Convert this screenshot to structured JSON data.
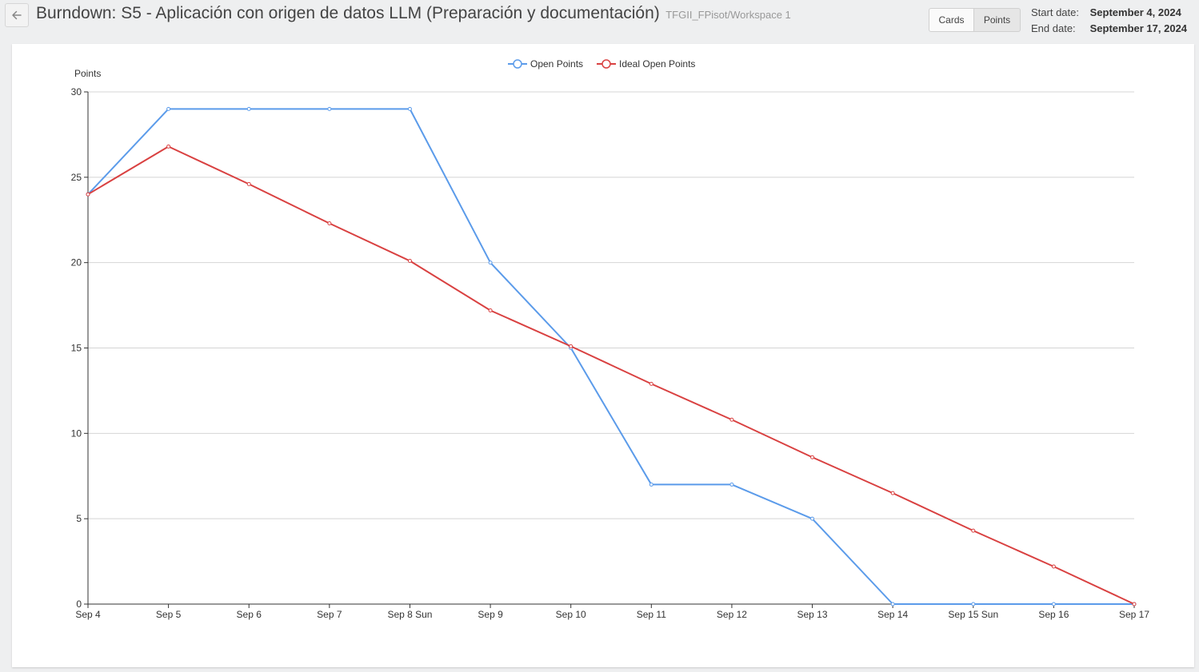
{
  "header": {
    "title": "Burndown: S5 - Aplicación con origen de datos LLM (Preparación y documentación)",
    "subtitle": "TFGII_FPisot/Workspace 1",
    "back_icon": "arrow-left-icon",
    "toggle": {
      "cards_label": "Cards",
      "points_label": "Points",
      "selected": "Points"
    },
    "start_label": "Start date:",
    "start_value": "September 4, 2024",
    "end_label": "End date:",
    "end_value": "September 17, 2024"
  },
  "chart_data": {
    "type": "line",
    "ylabel": "Points",
    "ylim": [
      0,
      30
    ],
    "yticks": [
      0,
      5,
      10,
      15,
      20,
      25,
      30
    ],
    "grid": true,
    "legend_position": "top-center",
    "categories": [
      "Sep 4",
      "Sep 5",
      "Sep 6",
      "Sep 7",
      "Sep 8 Sun",
      "Sep 9",
      "Sep 10",
      "Sep 11",
      "Sep 12",
      "Sep 13",
      "Sep 14",
      "Sep 15 Sun",
      "Sep 16",
      "Sep 17"
    ],
    "series": [
      {
        "name": "Open Points",
        "color": "#5b9bea",
        "values": [
          24,
          29,
          29,
          29,
          29,
          20,
          15,
          7,
          7,
          5,
          0,
          0,
          0,
          0
        ]
      },
      {
        "name": "Ideal Open Points",
        "color": "#d94141",
        "values": [
          24,
          26.8,
          24.6,
          22.3,
          20.1,
          17.2,
          15.1,
          12.9,
          10.8,
          8.6,
          6.5,
          4.3,
          2.2,
          0
        ]
      }
    ]
  }
}
